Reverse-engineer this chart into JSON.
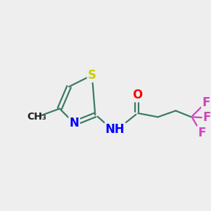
{
  "bg_color": "#eeeeee",
  "bond_color": "#3a7a65",
  "line_width": 1.6,
  "atom_colors": {
    "S": "#cccc00",
    "N": "#0000ff",
    "O": "#ff0000",
    "F": "#cc44bb",
    "C": "#3a7a65"
  },
  "font_size_atoms": 12,
  "font_size_methyl": 10
}
